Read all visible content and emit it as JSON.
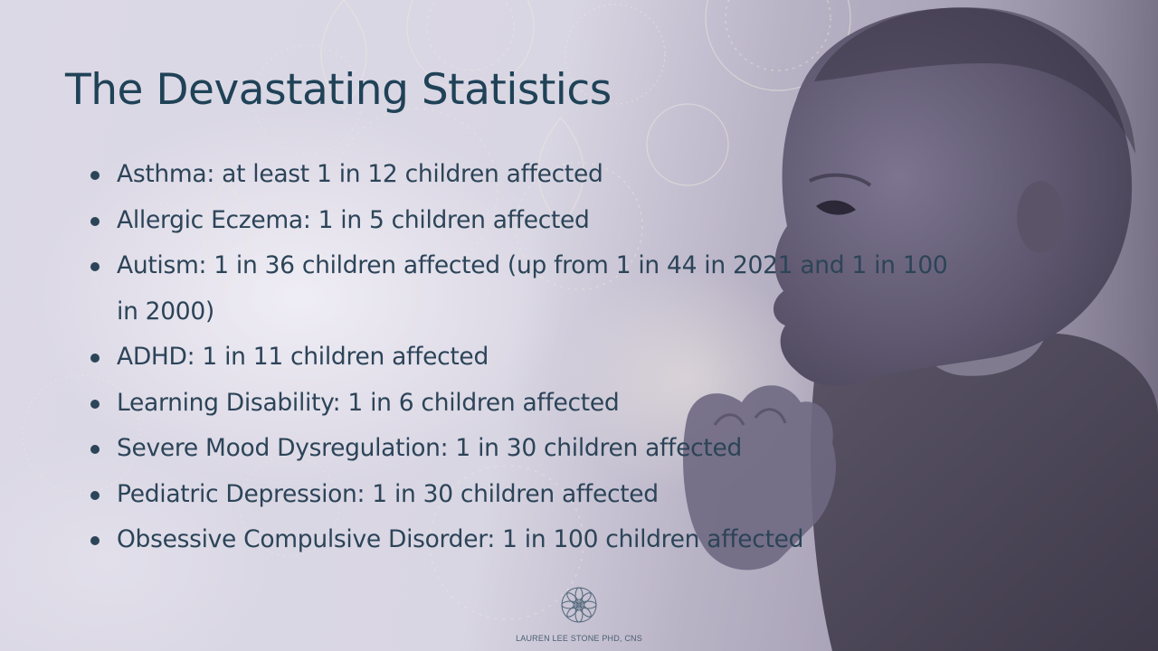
{
  "slide": {
    "title": "The Devastating Statistics",
    "stats": [
      "Asthma: at least 1 in 12 children affected",
      "Allergic Eczema: 1 in 5 children affected",
      "Autism: 1 in 36 children affected (up from 1 in 44 in 2021 and 1 in 100 in 2000)",
      "ADHD: 1 in 11 children affected",
      "Learning Disability: 1 in 6 children affected",
      "Severe Mood Dysregulation: 1 in 30 children affected",
      "Pediatric Depression: 1 in 30 children affected",
      "Obsessive Compulsive Disorder: 1 in 100 children affected"
    ],
    "footer": {
      "author": "LAUREN LEE STONE PHD, CNS",
      "logo_icon": "mandala-icon"
    }
  },
  "colors": {
    "title": "#1f4257",
    "body_text": "#2c4458",
    "background": "#d9d6e3",
    "photo_tint": "#8f879e"
  }
}
